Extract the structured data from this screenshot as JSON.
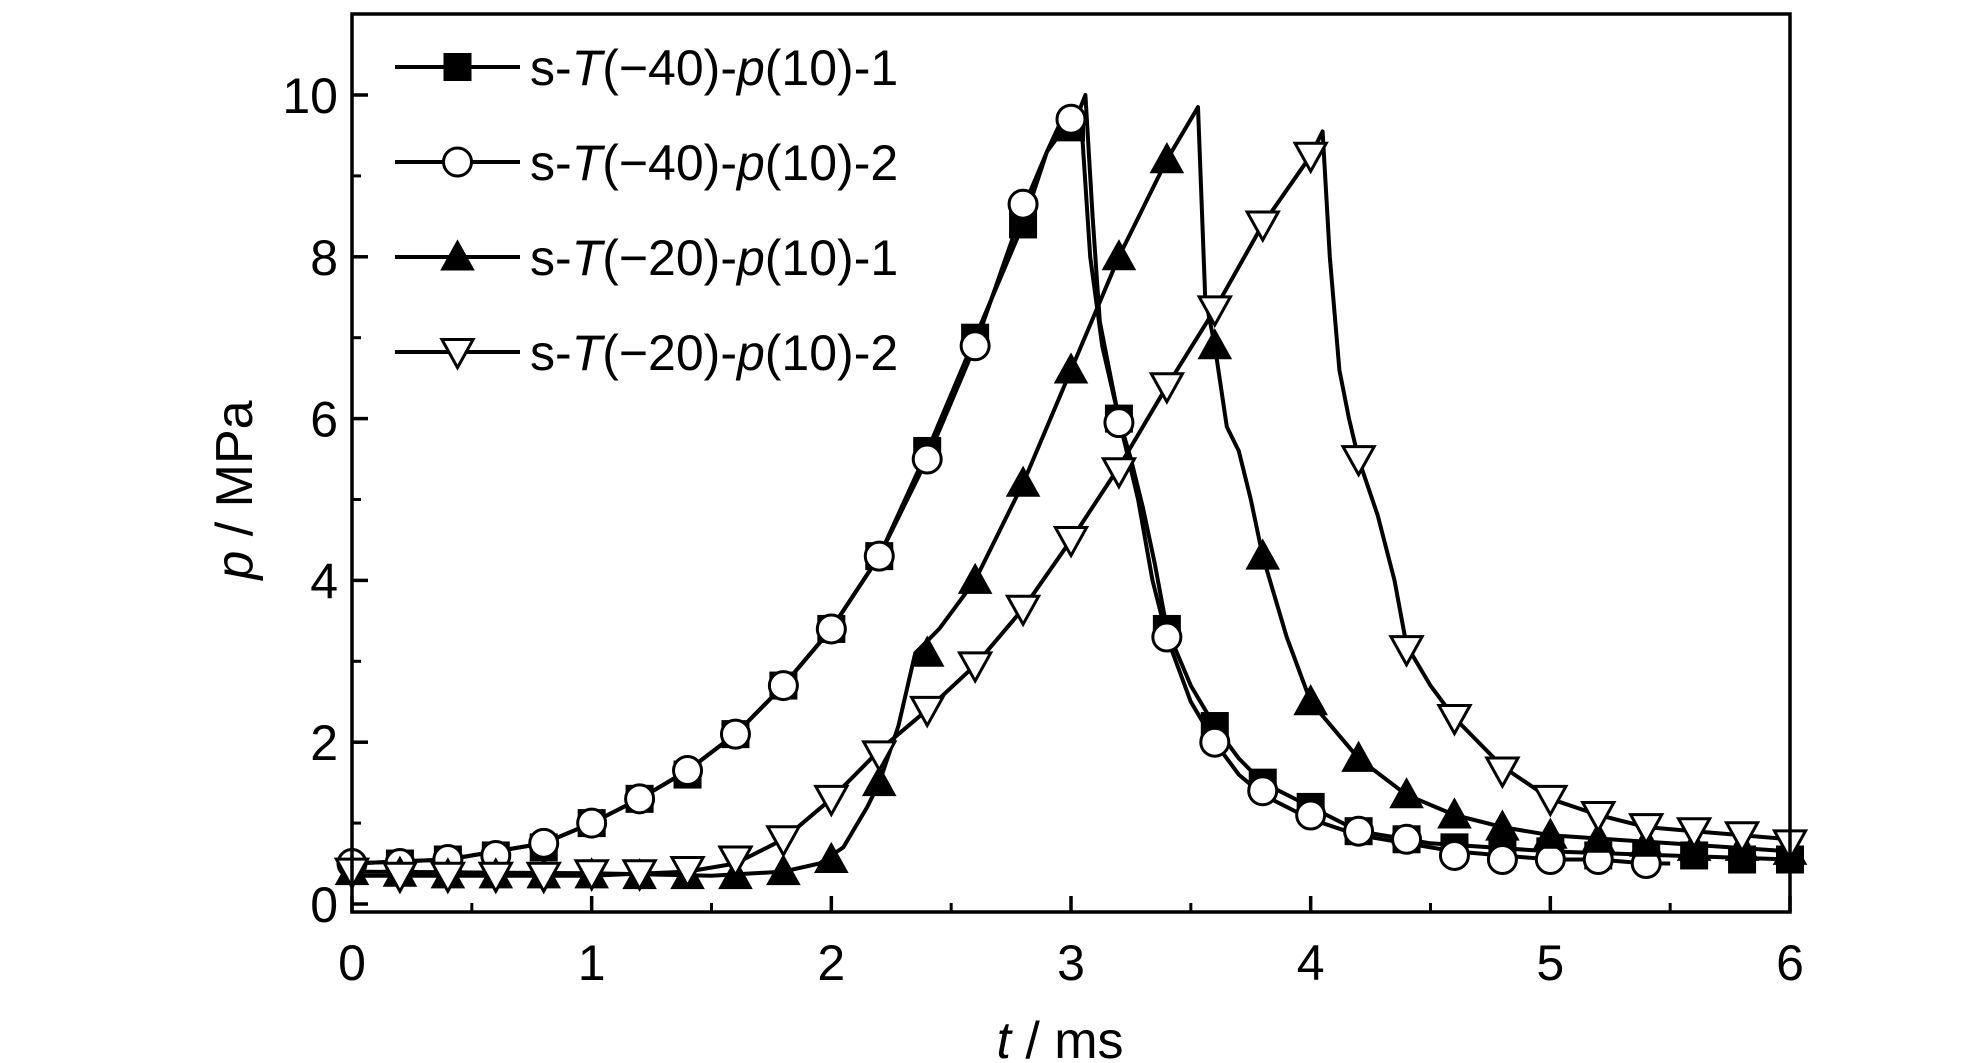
{
  "chart_data": {
    "type": "line",
    "title": "",
    "xlabel": "ms",
    "xlabel_var": "t",
    "ylabel": "MPa",
    "ylabel_var": "p",
    "label_separator": " / ",
    "xlim": [
      0,
      6
    ],
    "ylim": [
      0,
      11
    ],
    "xticks": [
      0,
      1,
      2,
      3,
      4,
      5,
      6
    ],
    "xtick_labels": [
      "0",
      "1",
      "2",
      "3",
      "4",
      "5",
      "6"
    ],
    "yticks": [
      0,
      2,
      4,
      6,
      8,
      10
    ],
    "ytick_labels": [
      "0",
      "2",
      "4",
      "6",
      "8",
      "10"
    ],
    "grid": false,
    "legend_position": "top-left",
    "series": [
      {
        "name": "s-T(−40)-p(10)-1",
        "legend": {
          "pre": "s-",
          "var1": "T",
          "mid": "(−40)-",
          "var2": "p",
          "post": "(10)-1"
        },
        "marker": "square-filled",
        "line": [
          [
            0,
            0.5
          ],
          [
            0.4,
            0.55
          ],
          [
            0.8,
            0.75
          ],
          [
            1.0,
            1.0
          ],
          [
            1.2,
            1.3
          ],
          [
            1.4,
            1.65
          ],
          [
            1.6,
            2.1
          ],
          [
            1.8,
            2.7
          ],
          [
            2.0,
            3.4
          ],
          [
            2.2,
            4.3
          ],
          [
            2.4,
            5.6
          ],
          [
            2.6,
            7.0
          ],
          [
            2.8,
            8.4
          ],
          [
            2.9,
            9.3
          ],
          [
            2.97,
            9.75
          ],
          [
            3.02,
            9.7
          ],
          [
            3.06,
            10.0
          ],
          [
            3.09,
            8.5
          ],
          [
            3.12,
            7.2
          ],
          [
            3.16,
            6.6
          ],
          [
            3.2,
            6.0
          ],
          [
            3.25,
            5.5
          ],
          [
            3.3,
            4.9
          ],
          [
            3.35,
            4.2
          ],
          [
            3.4,
            3.4
          ],
          [
            3.5,
            2.7
          ],
          [
            3.6,
            2.2
          ],
          [
            3.7,
            1.8
          ],
          [
            3.8,
            1.5
          ],
          [
            4.0,
            1.2
          ],
          [
            4.2,
            0.9
          ],
          [
            4.5,
            0.75
          ],
          [
            5.0,
            0.65
          ],
          [
            5.5,
            0.6
          ],
          [
            6.0,
            0.55
          ]
        ],
        "markers": [
          [
            0.2,
            0.5
          ],
          [
            0.4,
            0.55
          ],
          [
            0.6,
            0.6
          ],
          [
            0.8,
            0.7
          ],
          [
            1.0,
            1.0
          ],
          [
            1.2,
            1.3
          ],
          [
            1.4,
            1.6
          ],
          [
            1.6,
            2.1
          ],
          [
            1.8,
            2.7
          ],
          [
            2.0,
            3.4
          ],
          [
            2.2,
            4.3
          ],
          [
            2.4,
            5.6
          ],
          [
            2.6,
            7.0
          ],
          [
            2.8,
            8.4
          ],
          [
            3.0,
            9.6
          ],
          [
            3.2,
            6.0
          ],
          [
            3.4,
            3.4
          ],
          [
            3.6,
            2.2
          ],
          [
            3.8,
            1.5
          ],
          [
            4.0,
            1.2
          ],
          [
            4.2,
            0.9
          ],
          [
            4.4,
            0.8
          ],
          [
            4.6,
            0.7
          ],
          [
            4.8,
            0.65
          ],
          [
            5.0,
            0.65
          ],
          [
            5.2,
            0.6
          ],
          [
            5.4,
            0.6
          ],
          [
            5.6,
            0.6
          ],
          [
            5.8,
            0.55
          ],
          [
            6.0,
            0.55
          ]
        ]
      },
      {
        "name": "s-T(−40)-p(10)-2",
        "legend": {
          "pre": "s-",
          "var1": "T",
          "mid": "(−40)-",
          "var2": "p",
          "post": "(10)-2"
        },
        "marker": "circle-open",
        "line": [
          [
            0,
            0.5
          ],
          [
            0.4,
            0.55
          ],
          [
            0.8,
            0.75
          ],
          [
            1.0,
            1.0
          ],
          [
            1.2,
            1.3
          ],
          [
            1.4,
            1.65
          ],
          [
            1.6,
            2.1
          ],
          [
            1.8,
            2.7
          ],
          [
            2.0,
            3.4
          ],
          [
            2.2,
            4.3
          ],
          [
            2.4,
            5.5
          ],
          [
            2.6,
            6.9
          ],
          [
            2.8,
            8.6
          ],
          [
            2.9,
            9.3
          ],
          [
            3.0,
            9.7
          ],
          [
            3.04,
            9.8
          ],
          [
            3.08,
            8.0
          ],
          [
            3.13,
            6.9
          ],
          [
            3.2,
            6.0
          ],
          [
            3.28,
            5.0
          ],
          [
            3.34,
            4.0
          ],
          [
            3.4,
            3.3
          ],
          [
            3.5,
            2.5
          ],
          [
            3.6,
            2.0
          ],
          [
            3.7,
            1.6
          ],
          [
            3.8,
            1.35
          ],
          [
            4.0,
            1.05
          ],
          [
            4.2,
            0.85
          ],
          [
            4.4,
            0.75
          ],
          [
            4.6,
            0.65
          ],
          [
            4.8,
            0.6
          ],
          [
            5.0,
            0.55
          ],
          [
            5.2,
            0.55
          ],
          [
            5.4,
            0.5
          ],
          [
            5.5,
            0.5
          ]
        ],
        "markers": [
          [
            0,
            0.5
          ],
          [
            0.2,
            0.5
          ],
          [
            0.4,
            0.55
          ],
          [
            0.6,
            0.6
          ],
          [
            0.8,
            0.75
          ],
          [
            1.0,
            1.0
          ],
          [
            1.2,
            1.3
          ],
          [
            1.4,
            1.65
          ],
          [
            1.6,
            2.1
          ],
          [
            1.8,
            2.7
          ],
          [
            2.0,
            3.4
          ],
          [
            2.2,
            4.3
          ],
          [
            2.4,
            5.5
          ],
          [
            2.6,
            6.9
          ],
          [
            2.8,
            8.65
          ],
          [
            3.0,
            9.7
          ],
          [
            3.2,
            5.95
          ],
          [
            3.4,
            3.3
          ],
          [
            3.6,
            2.0
          ],
          [
            3.8,
            1.4
          ],
          [
            4.0,
            1.1
          ],
          [
            4.2,
            0.9
          ],
          [
            4.4,
            0.8
          ],
          [
            4.6,
            0.6
          ],
          [
            4.8,
            0.55
          ],
          [
            5.0,
            0.55
          ],
          [
            5.2,
            0.55
          ],
          [
            5.4,
            0.5
          ]
        ]
      },
      {
        "name": "s-T(−20)-p(10)-1",
        "legend": {
          "pre": "s-",
          "var1": "T",
          "mid": "(−20)-",
          "var2": "p",
          "post": "(10)-1"
        },
        "marker": "triangle-up-filled",
        "line": [
          [
            0,
            0.4
          ],
          [
            1.0,
            0.38
          ],
          [
            1.5,
            0.35
          ],
          [
            1.8,
            0.4
          ],
          [
            1.95,
            0.5
          ],
          [
            2.05,
            0.7
          ],
          [
            2.15,
            1.2
          ],
          [
            2.2,
            1.5
          ],
          [
            2.28,
            2.2
          ],
          [
            2.35,
            3.1
          ],
          [
            2.45,
            3.4
          ],
          [
            2.6,
            4.0
          ],
          [
            2.8,
            5.2
          ],
          [
            3.0,
            6.6
          ],
          [
            3.2,
            8.0
          ],
          [
            3.4,
            9.2
          ],
          [
            3.53,
            9.85
          ],
          [
            3.56,
            7.5
          ],
          [
            3.6,
            6.9
          ],
          [
            3.65,
            5.9
          ],
          [
            3.7,
            5.6
          ],
          [
            3.75,
            5.0
          ],
          [
            3.8,
            4.3
          ],
          [
            3.9,
            3.3
          ],
          [
            4.0,
            2.5
          ],
          [
            4.2,
            1.8
          ],
          [
            4.4,
            1.35
          ],
          [
            4.6,
            1.1
          ],
          [
            4.8,
            0.95
          ],
          [
            5.0,
            0.85
          ],
          [
            5.5,
            0.75
          ],
          [
            6.0,
            0.65
          ]
        ],
        "markers": [
          [
            0,
            0.4
          ],
          [
            0.2,
            0.38
          ],
          [
            0.4,
            0.36
          ],
          [
            0.6,
            0.36
          ],
          [
            0.8,
            0.36
          ],
          [
            1.0,
            0.36
          ],
          [
            1.2,
            0.35
          ],
          [
            1.4,
            0.35
          ],
          [
            1.6,
            0.35
          ],
          [
            1.8,
            0.4
          ],
          [
            2.0,
            0.55
          ],
          [
            2.2,
            1.5
          ],
          [
            2.4,
            3.1
          ],
          [
            2.6,
            4.0
          ],
          [
            2.8,
            5.2
          ],
          [
            3.0,
            6.6
          ],
          [
            3.2,
            8.0
          ],
          [
            3.4,
            9.2
          ],
          [
            3.6,
            6.9
          ],
          [
            3.8,
            4.3
          ],
          [
            4.0,
            2.5
          ],
          [
            4.2,
            1.8
          ],
          [
            4.4,
            1.35
          ],
          [
            4.6,
            1.1
          ],
          [
            4.8,
            0.95
          ],
          [
            5.0,
            0.85
          ],
          [
            5.2,
            0.8
          ],
          [
            5.4,
            0.75
          ],
          [
            5.6,
            0.7
          ],
          [
            5.8,
            0.7
          ],
          [
            6.0,
            0.65
          ]
        ]
      },
      {
        "name": "s-T(−20)-p(10)-2",
        "legend": {
          "pre": "s-",
          "var1": "T",
          "mid": "(−20)-",
          "var2": "p",
          "post": "(10)-2"
        },
        "marker": "triangle-down-open",
        "line": [
          [
            0,
            0.35
          ],
          [
            1.0,
            0.35
          ],
          [
            1.4,
            0.4
          ],
          [
            1.6,
            0.5
          ],
          [
            1.8,
            0.8
          ],
          [
            2.0,
            1.3
          ],
          [
            2.2,
            1.9
          ],
          [
            2.4,
            2.4
          ],
          [
            2.6,
            2.95
          ],
          [
            2.8,
            3.65
          ],
          [
            3.0,
            4.5
          ],
          [
            3.2,
            5.4
          ],
          [
            3.4,
            6.4
          ],
          [
            3.6,
            7.35
          ],
          [
            3.8,
            8.4
          ],
          [
            4.0,
            9.25
          ],
          [
            4.05,
            9.55
          ],
          [
            4.08,
            8.0
          ],
          [
            4.12,
            6.6
          ],
          [
            4.16,
            6.0
          ],
          [
            4.2,
            5.5
          ],
          [
            4.28,
            4.8
          ],
          [
            4.35,
            4.0
          ],
          [
            4.4,
            3.2
          ],
          [
            4.5,
            2.7
          ],
          [
            4.6,
            2.3
          ],
          [
            4.8,
            1.7
          ],
          [
            5.0,
            1.3
          ],
          [
            5.2,
            1.1
          ],
          [
            5.4,
            0.95
          ],
          [
            5.6,
            0.9
          ],
          [
            5.8,
            0.85
          ],
          [
            6.0,
            0.8
          ]
        ],
        "markers": [
          [
            0,
            0.4
          ],
          [
            0.2,
            0.35
          ],
          [
            0.4,
            0.35
          ],
          [
            0.6,
            0.35
          ],
          [
            0.8,
            0.35
          ],
          [
            1.0,
            0.38
          ],
          [
            1.2,
            0.38
          ],
          [
            1.4,
            0.42
          ],
          [
            1.6,
            0.55
          ],
          [
            1.8,
            0.8
          ],
          [
            2.0,
            1.3
          ],
          [
            2.2,
            1.85
          ],
          [
            2.4,
            2.4
          ],
          [
            2.6,
            2.95
          ],
          [
            2.8,
            3.65
          ],
          [
            3.0,
            4.5
          ],
          [
            3.2,
            5.35
          ],
          [
            3.4,
            6.4
          ],
          [
            3.6,
            7.35
          ],
          [
            3.8,
            8.4
          ],
          [
            4.0,
            9.25
          ],
          [
            4.2,
            5.5
          ],
          [
            4.4,
            3.15
          ],
          [
            4.6,
            2.3
          ],
          [
            4.8,
            1.65
          ],
          [
            5.0,
            1.3
          ],
          [
            5.2,
            1.1
          ],
          [
            5.4,
            0.95
          ],
          [
            5.6,
            0.9
          ],
          [
            5.8,
            0.85
          ],
          [
            6.0,
            0.75
          ]
        ]
      }
    ]
  }
}
